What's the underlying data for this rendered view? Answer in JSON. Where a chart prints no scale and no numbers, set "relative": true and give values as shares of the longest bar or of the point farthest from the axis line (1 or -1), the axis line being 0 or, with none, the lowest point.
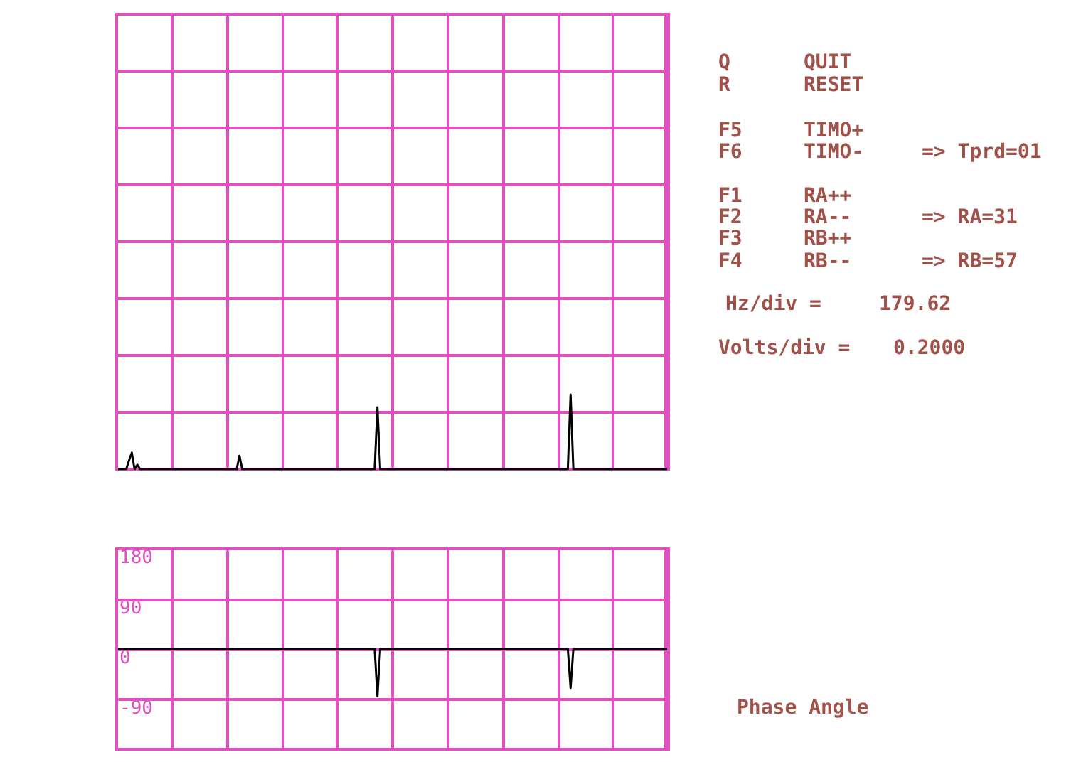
{
  "chart_data": [
    {
      "type": "line",
      "relative": true,
      "grid": true,
      "tick_labels": false,
      "categories": [
        null,
        null,
        null,
        null,
        null,
        null,
        null,
        null,
        null,
        null,
        null,
        null,
        null,
        null,
        null,
        null,
        null,
        null,
        null,
        null,
        null,
        null,
        null,
        null,
        null,
        null,
        null,
        null,
        null,
        null,
        null,
        null,
        null,
        null,
        null,
        null,
        null,
        null,
        null,
        null,
        null,
        null,
        null,
        null,
        null,
        null,
        null,
        null,
        null,
        null,
        null,
        null,
        null,
        null,
        null,
        null,
        null,
        null,
        null,
        null,
        null,
        null,
        null,
        null,
        null,
        null,
        null,
        null,
        null,
        null,
        null,
        null,
        null,
        null,
        null,
        null,
        null,
        null,
        null,
        null,
        null,
        null,
        null,
        null,
        null,
        null,
        null,
        null,
        null,
        null,
        null,
        null,
        null,
        null,
        null,
        null,
        null,
        null,
        null,
        null,
        null,
        null,
        null,
        null,
        null,
        null,
        null,
        null,
        null,
        null,
        null,
        null,
        null,
        null,
        null,
        null,
        null,
        null,
        null,
        null,
        null,
        null,
        null,
        null,
        null,
        null,
        null,
        null,
        null,
        null,
        null,
        null,
        null,
        null,
        null,
        null,
        null,
        null,
        null,
        null,
        null,
        null,
        null,
        null,
        null,
        null,
        null,
        null,
        null,
        null,
        null,
        null,
        null,
        null,
        null,
        null,
        null,
        null,
        null,
        null,
        null,
        null,
        null,
        null,
        null,
        null,
        null,
        null,
        null,
        null,
        null,
        null,
        null,
        null,
        null,
        null,
        null,
        null,
        null,
        null,
        null,
        null,
        null,
        null,
        null,
        null,
        null,
        null,
        null,
        null,
        null,
        null,
        null,
        null,
        null,
        null,
        null,
        null,
        null,
        null
      ],
      "series": [
        {
          "color": "#000000",
          "values": [
            0,
            0,
            0,
            0,
            0.12,
            0.22,
            0,
            0.06,
            0,
            0,
            0,
            0,
            0,
            0,
            0,
            0,
            0,
            0,
            0,
            0,
            0,
            0,
            0,
            0,
            0,
            0,
            0,
            0,
            0,
            0,
            0,
            0,
            0,
            0,
            0,
            0,
            0,
            0,
            0,
            0,
            0,
            0,
            0,
            0,
            0.18,
            0,
            0,
            0,
            0,
            0,
            0,
            0,
            0,
            0,
            0,
            0,
            0,
            0,
            0,
            0,
            0,
            0,
            0,
            0,
            0,
            0,
            0,
            0,
            0,
            0,
            0,
            0,
            0,
            0,
            0,
            0,
            0,
            0,
            0,
            0,
            0,
            0,
            0,
            0,
            0,
            0,
            0,
            0,
            0,
            0,
            0,
            0,
            0,
            0,
            0.83,
            0,
            0,
            0,
            0,
            0,
            0,
            0,
            0,
            0,
            0,
            0,
            0,
            0,
            0,
            0,
            0,
            0,
            0,
            0,
            0,
            0,
            0,
            0,
            0,
            0,
            0,
            0,
            0,
            0,
            0,
            0,
            0,
            0,
            0,
            0,
            0,
            0,
            0,
            0,
            0,
            0,
            0,
            0,
            0,
            0,
            0,
            0,
            0,
            0,
            0,
            0,
            0,
            0,
            0,
            0,
            0,
            0,
            0,
            0,
            0,
            0,
            0,
            0,
            0,
            0,
            0,
            0,
            0,
            0,
            1,
            0,
            0,
            0,
            0,
            0,
            0,
            0,
            0,
            0,
            0,
            0,
            0,
            0,
            0,
            0,
            0,
            0,
            0,
            0,
            0,
            0,
            0,
            0,
            0,
            0,
            0,
            0,
            0,
            0,
            0,
            0,
            0,
            0,
            0,
            0
          ]
        }
      ],
      "annotations": [
        "Q",
        "QUIT",
        "R",
        "RESET",
        "F5",
        "TIMO+",
        "F6",
        "TIMO-",
        "=> Tprd=01",
        "F1",
        "RA++",
        "F2",
        "RA--",
        "=> RA=31",
        "F3",
        "RB++",
        "F4",
        "RB--",
        "=> RB=57",
        "Hz/div =",
        "179.62",
        "Volts/div =",
        "0.2000",
        "Phase Angle"
      ]
    },
    {
      "type": "line",
      "grid": true,
      "tick_labels": "y",
      "categories": [
        null,
        null,
        null,
        null,
        null,
        null,
        null,
        null,
        null,
        null,
        null,
        null,
        null,
        null,
        null,
        null,
        null,
        null,
        null,
        null,
        null,
        null,
        null,
        null,
        null,
        null,
        null,
        null,
        null,
        null,
        null,
        null,
        null,
        null,
        null,
        null,
        null,
        null,
        null,
        null,
        null,
        null,
        null,
        null,
        null,
        null,
        null,
        null,
        null,
        null,
        null,
        null,
        null,
        null,
        null,
        null,
        null,
        null,
        null,
        null,
        null,
        null,
        null,
        null,
        null,
        null,
        null,
        null,
        null,
        null,
        null,
        null,
        null,
        null,
        null,
        null,
        null,
        null,
        null,
        null,
        null,
        null,
        null,
        null,
        null,
        null,
        null,
        null,
        null,
        null,
        null,
        null,
        null,
        null,
        null,
        null,
        null,
        null,
        null,
        null,
        null,
        null,
        null,
        null,
        null,
        null,
        null,
        null,
        null,
        null,
        null,
        null,
        null,
        null,
        null,
        null,
        null,
        null,
        null,
        null,
        null,
        null,
        null,
        null,
        null,
        null,
        null,
        null,
        null,
        null,
        null,
        null,
        null,
        null,
        null,
        null,
        null,
        null,
        null,
        null,
        null,
        null,
        null,
        null,
        null,
        null,
        null,
        null,
        null,
        null,
        null,
        null,
        null,
        null,
        null,
        null,
        null,
        null,
        null,
        null,
        null,
        null,
        null,
        null,
        null,
        null,
        null,
        null,
        null,
        null,
        null,
        null,
        null,
        null,
        null,
        null,
        null,
        null,
        null,
        null,
        null,
        null,
        null,
        null,
        null,
        null,
        null,
        null,
        null,
        null,
        null,
        null,
        null,
        null,
        null,
        null,
        null,
        null,
        null,
        null
      ],
      "ylim": [
        -180,
        180
      ],
      "yticks": [
        180,
        90,
        0,
        -90,
        {
          "value": -180,
          "label": null
        }
      ],
      "series": [
        {
          "color": "#000000",
          "values": [
            0,
            0,
            0,
            0,
            0,
            0,
            0,
            0,
            0,
            0,
            0,
            0,
            0,
            0,
            0,
            0,
            0,
            0,
            0,
            0,
            0,
            0,
            0,
            0,
            0,
            0,
            0,
            0,
            0,
            0,
            0,
            0,
            0,
            0,
            0,
            0,
            0,
            0,
            0,
            0,
            0,
            0,
            0,
            0,
            0,
            0,
            0,
            0,
            0,
            0,
            0,
            0,
            0,
            0,
            0,
            0,
            0,
            0,
            0,
            0,
            0,
            0,
            0,
            0,
            0,
            0,
            0,
            0,
            0,
            0,
            0,
            0,
            0,
            0,
            0,
            0,
            0,
            0,
            0,
            0,
            0,
            0,
            0,
            0,
            0,
            0,
            0,
            0,
            0,
            0,
            0,
            0,
            0,
            0,
            -85,
            0,
            0,
            0,
            0,
            0,
            0,
            0,
            0,
            0,
            0,
            0,
            0,
            0,
            0,
            0,
            0,
            0,
            0,
            0,
            0,
            0,
            0,
            0,
            0,
            0,
            0,
            0,
            0,
            0,
            0,
            0,
            0,
            0,
            0,
            0,
            0,
            0,
            0,
            0,
            0,
            0,
            0,
            0,
            0,
            0,
            0,
            0,
            0,
            0,
            0,
            0,
            0,
            0,
            0,
            0,
            0,
            0,
            0,
            0,
            0,
            0,
            0,
            0,
            0,
            0,
            0,
            0,
            0,
            0,
            -70,
            0,
            0,
            0,
            0,
            0,
            0,
            0,
            0,
            0,
            0,
            0,
            0,
            0,
            0,
            0,
            0,
            0,
            0,
            0,
            0,
            0,
            0,
            0,
            0,
            0,
            0,
            0,
            0,
            0,
            0,
            0,
            0,
            0,
            0,
            0
          ]
        }
      ]
    }
  ]
}
